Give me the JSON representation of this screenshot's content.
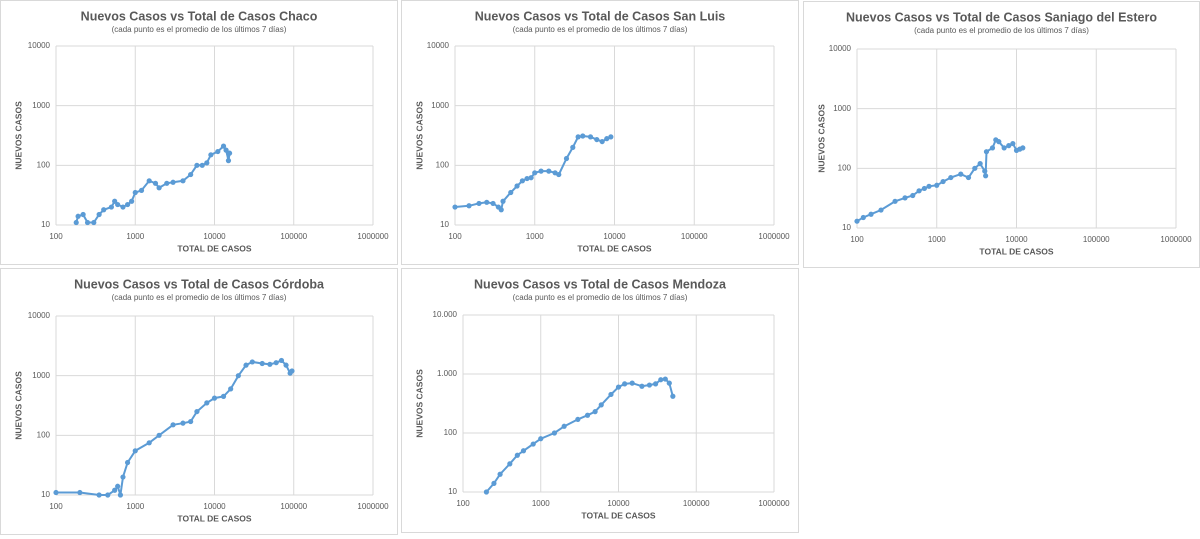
{
  "chart_data": [
    {
      "type": "scatter",
      "title": "Nuevos Casos vs Total de Casos Chaco",
      "subtitle": "(cada punto es el promedio de los últimos 7 días)",
      "xlabel": "TOTAL DE CASOS",
      "ylabel": "NUEVOS CASOS",
      "xscale": "log",
      "yscale": "log",
      "grid": true,
      "color": "#5b9bd5",
      "x": [
        180,
        190,
        220,
        250,
        300,
        350,
        400,
        500,
        550,
        600,
        700,
        800,
        900,
        1000,
        1200,
        1500,
        1800,
        2000,
        2500,
        3000,
        4000,
        5000,
        6000,
        7000,
        8000,
        9000,
        11000,
        13000,
        14000,
        15000,
        15500
      ],
      "y": [
        11,
        14,
        15,
        11,
        11,
        15,
        18,
        20,
        25,
        22,
        20,
        22,
        25,
        35,
        38,
        55,
        50,
        42,
        50,
        52,
        55,
        70,
        100,
        100,
        110,
        150,
        170,
        210,
        180,
        120,
        160
      ],
      "xlim": [
        100,
        1000000
      ],
      "xticks": [
        100,
        1000,
        10000,
        100000,
        1000000
      ],
      "ylim": [
        10,
        10000
      ],
      "yticks": [
        10,
        100,
        1000,
        10000
      ]
    },
    {
      "type": "scatter",
      "title": "Nuevos Casos vs Total de Casos San Luis",
      "subtitle": "(cada punto es el promedio de los últimos 7 días)",
      "xlabel": "TOTAL DE CASOS",
      "ylabel": "NUEVOS CASOS",
      "xscale": "log",
      "yscale": "log",
      "grid": true,
      "color": "#5b9bd5",
      "x": [
        100,
        150,
        200,
        250,
        300,
        350,
        380,
        400,
        500,
        600,
        700,
        800,
        900,
        1000,
        1200,
        1500,
        1800,
        2000,
        2500,
        3000,
        3500,
        4000,
        5000,
        6000,
        7000,
        8000,
        9000
      ],
      "y": [
        20,
        21,
        23,
        24,
        23,
        20,
        18,
        25,
        35,
        45,
        55,
        60,
        62,
        75,
        80,
        80,
        75,
        70,
        130,
        200,
        300,
        310,
        300,
        270,
        250,
        280,
        300
      ],
      "xlim": [
        100,
        1000000
      ],
      "xticks": [
        100,
        1000,
        10000,
        100000,
        1000000
      ],
      "ylim": [
        10,
        10000
      ],
      "yticks": [
        10,
        100,
        1000,
        10000
      ]
    },
    {
      "type": "scatter",
      "title": "Nuevos Casos vs Total de Casos Saniago del Estero",
      "subtitle": "(cada punto es el promedio de los últimos 7 días)",
      "xlabel": "TOTAL DE CASOS",
      "ylabel": "NUEVOS CASOS",
      "xscale": "log",
      "yscale": "log",
      "grid": true,
      "color": "#5b9bd5",
      "x": [
        100,
        120,
        150,
        200,
        300,
        400,
        500,
        600,
        700,
        800,
        1000,
        1200,
        1500,
        2000,
        2500,
        3000,
        3500,
        4000,
        4100,
        4200,
        5000,
        5500,
        6000,
        7000,
        8000,
        9000,
        10000,
        11000,
        12000
      ],
      "y": [
        13,
        15,
        17,
        20,
        28,
        32,
        35,
        42,
        46,
        50,
        52,
        60,
        70,
        80,
        70,
        100,
        120,
        90,
        75,
        190,
        220,
        300,
        280,
        220,
        240,
        260,
        200,
        210,
        220
      ],
      "xlim": [
        100,
        1000000
      ],
      "xticks": [
        100,
        1000,
        10000,
        100000,
        1000000
      ],
      "ylim": [
        10,
        10000
      ],
      "yticks": [
        10,
        100,
        1000,
        10000
      ]
    },
    {
      "type": "scatter",
      "title": "Nuevos Casos vs Total de Casos Córdoba",
      "subtitle": "(cada punto es el promedio de los últimos 7 días)",
      "xlabel": "TOTAL DE CASOS",
      "ylabel": "NUEVOS CASOS",
      "xscale": "log",
      "yscale": "log",
      "grid": true,
      "color": "#5b9bd5",
      "x": [
        100,
        200,
        350,
        450,
        550,
        600,
        650,
        700,
        800,
        1000,
        1500,
        2000,
        3000,
        4000,
        5000,
        6000,
        8000,
        10000,
        13000,
        16000,
        20000,
        25000,
        30000,
        40000,
        50000,
        60000,
        70000,
        80000,
        90000,
        95000
      ],
      "y": [
        11,
        11,
        10,
        10,
        12,
        14,
        10,
        20,
        35,
        55,
        75,
        100,
        150,
        160,
        170,
        250,
        350,
        420,
        450,
        600,
        1000,
        1500,
        1700,
        1600,
        1550,
        1650,
        1800,
        1500,
        1100,
        1200
      ],
      "xlim": [
        100,
        1000000
      ],
      "xticks": [
        100,
        1000,
        10000,
        100000,
        1000000
      ],
      "ylim": [
        10,
        10000
      ],
      "yticks": [
        10,
        100,
        1000,
        10000
      ]
    },
    {
      "type": "scatter",
      "title": "Nuevos Casos vs Total de Casos Mendoza",
      "subtitle": "(cada punto es el promedio de los últimos 7 días)",
      "xlabel": "TOTAL DE CASOS",
      "ylabel": "NUEVOS CASOS",
      "xscale": "log",
      "yscale": "log",
      "grid": true,
      "color": "#5b9bd5",
      "x": [
        200,
        250,
        300,
        400,
        500,
        600,
        800,
        1000,
        1500,
        2000,
        3000,
        4000,
        5000,
        6000,
        8000,
        10000,
        12000,
        15000,
        20000,
        25000,
        30000,
        35000,
        40000,
        45000,
        50000
      ],
      "y": [
        10,
        14,
        20,
        30,
        42,
        50,
        65,
        80,
        100,
        130,
        170,
        200,
        230,
        300,
        450,
        600,
        680,
        700,
        620,
        650,
        680,
        800,
        820,
        700,
        420
      ],
      "xlim": [
        100,
        1000000
      ],
      "xticks": [
        100,
        1000,
        10000,
        100000,
        1000000
      ],
      "ylim": [
        10,
        10000
      ],
      "yticks": [
        10,
        100,
        {
          "value": 1000,
          "label": "1.000"
        },
        {
          "value": 10000,
          "label": "10.000"
        }
      ]
    }
  ]
}
